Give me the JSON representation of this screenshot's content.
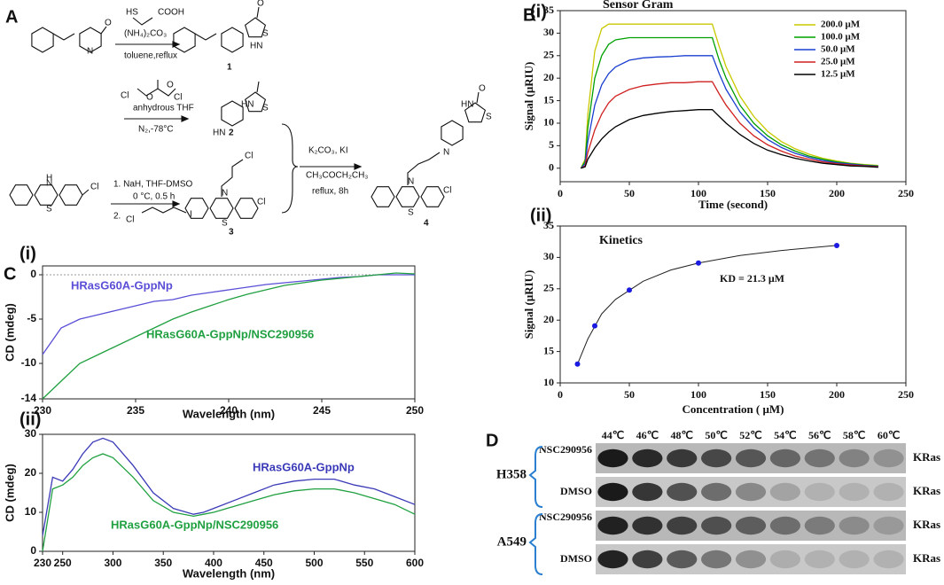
{
  "panel_letters": [
    "A",
    "B",
    "C",
    "D"
  ],
  "scheme": {
    "texts": [
      "HS",
      "COOH",
      "(NH₄)₂CO₃",
      "toluene,reflux",
      "1",
      "Cl",
      "O",
      "O",
      "Cl",
      "anhydrous THF",
      "N₂,-78°C",
      "2",
      "1. NaH, THF-DMSO",
      "0 °C, 0.5 h",
      "2.",
      "Cl",
      "I",
      "3",
      "K₂CO₃, KI",
      "CH₃COCH₂CH₃",
      "reflux, 8h",
      "4",
      "O",
      "N",
      "HN",
      "S",
      "O",
      "HN",
      "S",
      "HN",
      "H",
      "N",
      "S",
      "Cl",
      "N",
      "S",
      "Cl",
      "Cl",
      "O",
      "HN",
      "S",
      "N",
      "N",
      "S",
      "Cl"
    ]
  },
  "chart_data": [
    {
      "type": "line",
      "panel": "(i)",
      "title": "Sensor Gram",
      "x_label": "Time (second)",
      "y_label": "Signal (μRIU)",
      "xlim": [
        0,
        250
      ],
      "xticks": [
        0,
        50,
        100,
        150,
        200,
        250
      ],
      "ylim": [
        -3,
        35
      ],
      "yticks": [
        0,
        5,
        10,
        15,
        20,
        25,
        30,
        35
      ],
      "legend": "upper right",
      "x": [
        15,
        18,
        20,
        25,
        30,
        35,
        40,
        50,
        60,
        70,
        80,
        90,
        100,
        110,
        115,
        120,
        130,
        140,
        150,
        160,
        170,
        180,
        190,
        200,
        210,
        220,
        230
      ],
      "series": [
        {
          "name": "200.0 μM",
          "color": "#c8c800",
          "values": [
            0,
            2,
            12,
            26,
            31,
            32,
            32,
            32,
            32,
            32,
            32,
            32,
            32,
            32,
            27,
            22.5,
            16,
            11.5,
            8.2,
            5.9,
            4.3,
            3.1,
            2.2,
            1.6,
            1.1,
            0.8,
            0.6
          ]
        },
        {
          "name": "100.0 μM",
          "color": "#00a000",
          "values": [
            0,
            1.5,
            9,
            20,
            25,
            27.5,
            28.5,
            29,
            29,
            29,
            29,
            29,
            29,
            29,
            24,
            20,
            14,
            10,
            7.2,
            5.2,
            3.8,
            2.7,
            2,
            1.4,
            1,
            0.7,
            0.5
          ]
        },
        {
          "name": "50.0  μM",
          "color": "#1a3fd0",
          "values": [
            0,
            1,
            6,
            14,
            18.5,
            21,
            22.5,
            24,
            24.5,
            24.7,
            24.8,
            25,
            25,
            25,
            21,
            17.5,
            12.5,
            9,
            6.4,
            4.6,
            3.3,
            2.4,
            1.7,
            1.2,
            0.9,
            0.6,
            0.4
          ]
        },
        {
          "name": "25.0  μM",
          "color": "#d02020",
          "values": [
            0,
            0.5,
            3.5,
            8.5,
            12,
            14.5,
            16,
            17.5,
            18.3,
            18.7,
            19,
            19,
            19.2,
            19.2,
            16.5,
            14,
            10,
            7.2,
            5.2,
            3.8,
            2.7,
            2,
            1.4,
            1,
            0.7,
            0.5,
            0.3
          ]
        },
        {
          "name": "12.5  μM",
          "color": "#000000",
          "values": [
            0,
            0.3,
            2,
            4.5,
            6.5,
            8,
            9.2,
            10.8,
            11.7,
            12.2,
            12.6,
            12.8,
            13,
            13,
            11.5,
            10,
            7.5,
            5.5,
            4,
            3,
            2.2,
            1.6,
            1.1,
            0.8,
            0.5,
            0.4,
            0.2
          ]
        }
      ]
    },
    {
      "type": "scatter",
      "panel": "(ii)",
      "title": "Kinetics",
      "annotation": "KD = 21.3 μM",
      "x_label": "Concentration ( μM)",
      "y_label": "Signal (μRIU)",
      "xlim": [
        0,
        250
      ],
      "xticks": [
        0,
        50,
        100,
        150,
        200,
        250
      ],
      "ylim": [
        10,
        35
      ],
      "yticks": [
        10,
        15,
        20,
        25,
        30,
        35
      ],
      "color": "#1a1ae0",
      "x": [
        12.5,
        25,
        50,
        100,
        200
      ],
      "values": [
        13,
        19.1,
        24.8,
        29.1,
        31.9
      ],
      "fit": {
        "x": [
          12.5,
          20,
          30,
          40,
          60,
          80,
          100,
          130,
          160,
          200
        ],
        "values": [
          13,
          17,
          21,
          23.3,
          26.2,
          28,
          29.1,
          30.3,
          31.1,
          31.9
        ]
      }
    },
    {
      "type": "line",
      "panel": "(i)",
      "x_label": "Wavelength (nm)",
      "y_label": "CD (mdeg)",
      "legend": "inline",
      "zero_line": true,
      "xlim": [
        230,
        250
      ],
      "xticks": [
        230,
        235,
        240,
        245,
        250
      ],
      "ylim": [
        -14,
        1
      ],
      "yticks": [
        0,
        -5,
        -10,
        -14
      ],
      "x": [
        230,
        231,
        232,
        233,
        234,
        235,
        236,
        237,
        238,
        239,
        240,
        241,
        242,
        243,
        244,
        245,
        246,
        247,
        248,
        249,
        250
      ],
      "series": [
        {
          "name": "HRasG60A-GppNp",
          "color": "#5a4fd6",
          "values": [
            -9,
            -6,
            -5,
            -4.5,
            -4,
            -3.5,
            -3,
            -2.8,
            -2.3,
            -2,
            -1.7,
            -1.4,
            -1.1,
            -0.9,
            -0.7,
            -0.5,
            -0.3,
            -0.2,
            0,
            0,
            0
          ]
        },
        {
          "name": "HRasG60A-GppNp/NSC290956",
          "color": "#20a040",
          "values": [
            -14,
            -12,
            -10,
            -9,
            -8,
            -7,
            -6,
            -5,
            -4.2,
            -3.5,
            -2.8,
            -2.2,
            -1.7,
            -1.2,
            -0.9,
            -0.6,
            -0.4,
            -0.2,
            0,
            0.2,
            0.1
          ]
        }
      ]
    },
    {
      "type": "line",
      "panel": "(ii)",
      "x_label": "Wavelength (nm)",
      "y_label": "CD (mdeg)",
      "legend": "inline",
      "xlim": [
        230,
        600
      ],
      "xticks": [
        230,
        250,
        300,
        350,
        400,
        450,
        500,
        550,
        600
      ],
      "ylim": [
        0,
        30
      ],
      "yticks": [
        0,
        10,
        20,
        30
      ],
      "x": [
        230,
        240,
        250,
        260,
        270,
        280,
        290,
        300,
        320,
        340,
        360,
        380,
        390,
        400,
        420,
        440,
        460,
        480,
        500,
        520,
        540,
        560,
        580,
        600
      ],
      "series": [
        {
          "name": "HRasG60A-GppNp",
          "color": "#3a3ab8",
          "values": [
            4,
            19,
            18,
            21,
            25,
            28,
            29,
            28,
            22,
            15,
            11,
            9.5,
            10,
            11,
            13,
            15,
            17,
            18,
            18.5,
            18.5,
            17,
            16,
            14,
            12
          ]
        },
        {
          "name": "HRasG60A-GppNp/NSC290956",
          "color": "#20a040",
          "values": [
            0,
            16,
            17,
            19,
            22,
            24,
            25,
            24,
            19,
            13,
            10,
            9,
            9.5,
            10,
            11.5,
            13,
            14.5,
            15.5,
            16,
            16,
            15,
            13.5,
            12,
            9.5
          ]
        }
      ]
    }
  ],
  "blot": {
    "temperatures": [
      "44℃",
      "46℃",
      "48℃",
      "50℃",
      "52℃",
      "54℃",
      "56℃",
      "58℃",
      "60℃"
    ],
    "groups": [
      {
        "name": "H358",
        "rows": [
          "NSC290956",
          "DMSO"
        ]
      },
      {
        "name": "A549",
        "rows": [
          "NSC290956",
          "DMSO"
        ]
      }
    ],
    "protein": "KRas"
  }
}
